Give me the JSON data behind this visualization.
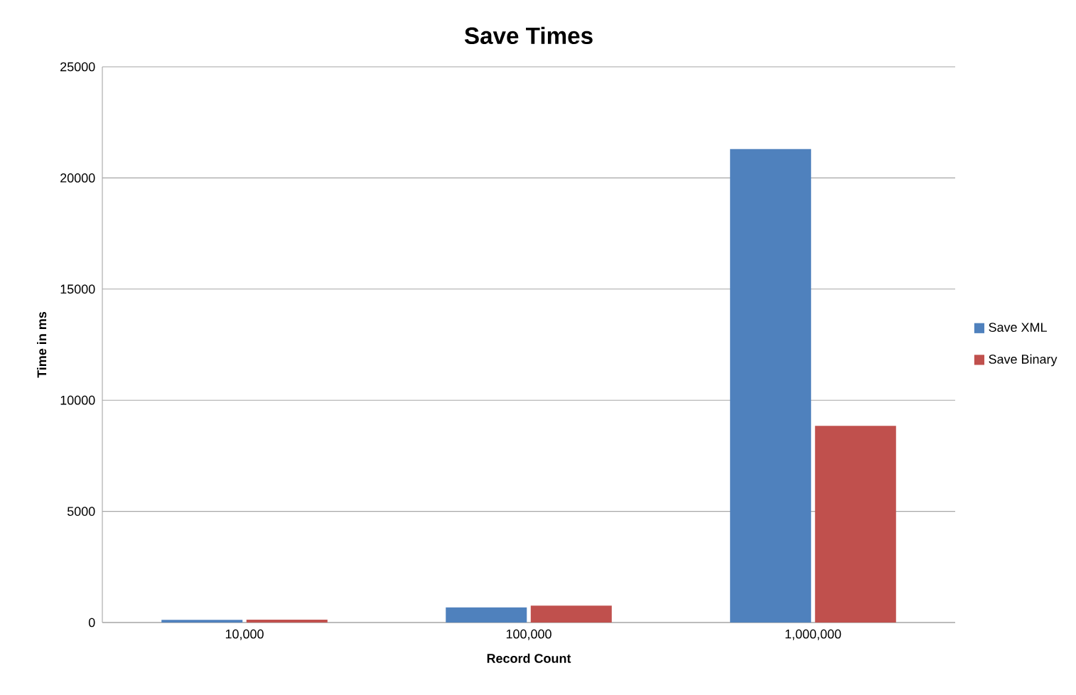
{
  "chart_data": {
    "type": "bar",
    "title": "Save Times",
    "xlabel": "Record Count",
    "ylabel": "Time in ms",
    "categories": [
      "10,000",
      "100,000",
      "1,000,000"
    ],
    "series": [
      {
        "name": "Save XML",
        "color": "#4f81bd",
        "values": [
          120,
          680,
          21300
        ]
      },
      {
        "name": "Save Binary",
        "color": "#c0504d",
        "values": [
          130,
          760,
          8850
        ]
      }
    ],
    "ylim": [
      0,
      25000
    ],
    "yticks": [
      0,
      5000,
      10000,
      15000,
      20000,
      25000
    ],
    "grid": "y",
    "legend": "right"
  }
}
